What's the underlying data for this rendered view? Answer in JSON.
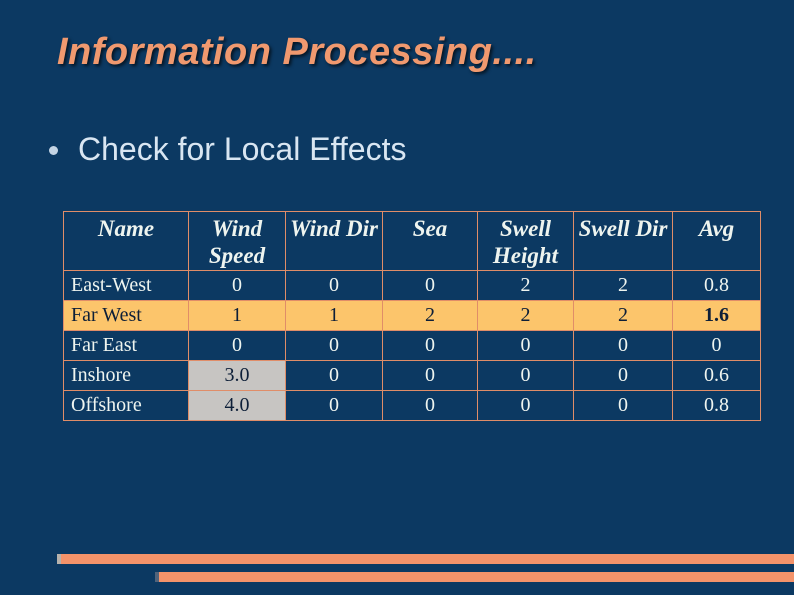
{
  "title": "Information Processing....",
  "bullet": {
    "label": "Check for Local Effects"
  },
  "table": {
    "columns": [
      "Name",
      "Wind\nSpeed",
      "Wind Dir",
      "Sea",
      "Swell\nHeight",
      "Swell Dir",
      "Avg"
    ],
    "rows": [
      {
        "name": "East-West",
        "values": [
          "0",
          "0",
          "0",
          "2",
          "2",
          "0.8"
        ],
        "row_style": "normal"
      },
      {
        "name": "Far West",
        "values": [
          "1",
          "1",
          "2",
          "2",
          "2",
          "1.6"
        ],
        "row_style": "highlight",
        "bold_value_indexes": [
          5
        ]
      },
      {
        "name": "Far East",
        "values": [
          "0",
          "0",
          "0",
          "0",
          "0",
          "0"
        ],
        "row_style": "normal"
      },
      {
        "name": "Inshore",
        "values": [
          "3.0",
          "0",
          "0",
          "0",
          "0",
          "0.6"
        ],
        "row_style": "normal",
        "gray_value_indexes": [
          0
        ]
      },
      {
        "name": "Offshore",
        "values": [
          "4.0",
          "0",
          "0",
          "0",
          "0",
          "0.8"
        ],
        "row_style": "normal",
        "gray_value_indexes": [
          0
        ]
      }
    ]
  },
  "icons": {
    "bullet": "filled-circle"
  },
  "colors": {
    "background": "#0c3962",
    "title_text": "#f0996f",
    "bullet_text": "#d9e6f2",
    "bullet_dot": "#c4d4e4",
    "table_border": "#e08d68",
    "table_header_text": "#eef4ef",
    "table_cell_text": "#eef4ef",
    "highlight_row_bg": "#fcc56b",
    "gray_cell_bg": "#c7c5c2",
    "dark_cell_text": "#0d1f38",
    "stripe_orange": "#f4936a",
    "stripe_cap_light": "#b7b2ac",
    "stripe_cap_dark": "#52637a"
  }
}
